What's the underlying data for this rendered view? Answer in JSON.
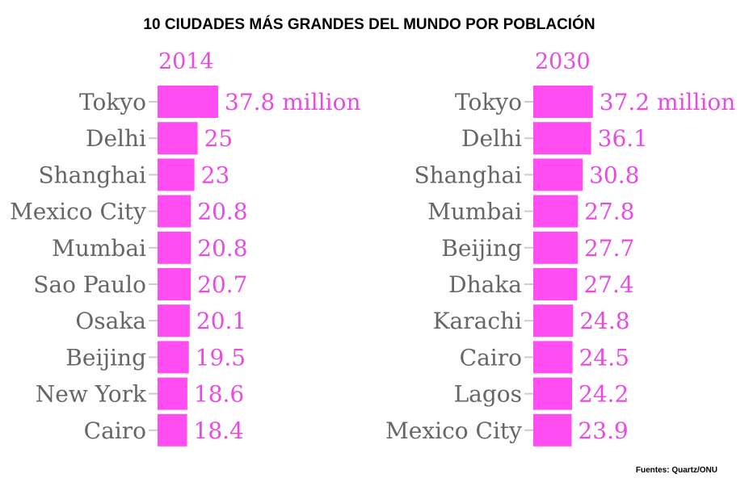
{
  "title": "10 CIUDADES MÁS GRANDES DEL MUNDO POR POBLACIÓN",
  "source": "Fuentes: Quartz/ONU",
  "colors": {
    "bar": "#ff4df2",
    "label": "#666666",
    "value": "#e84be0",
    "tick": "#cccccc"
  },
  "chart_data": [
    {
      "type": "bar",
      "orientation": "horizontal",
      "title": "2014",
      "categories": [
        "Tokyo",
        "Delhi",
        "Shanghai",
        "Mexico City",
        "Mumbai",
        "Sao Paulo",
        "Osaka",
        "Beijing",
        "New York",
        "Cairo"
      ],
      "values": [
        37.8,
        25,
        23,
        20.8,
        20.8,
        20.7,
        20.1,
        19.5,
        18.6,
        18.4
      ],
      "value_labels": [
        "37.8 million",
        "25",
        "23",
        "20.8",
        "20.8",
        "20.7",
        "20.1",
        "19.5",
        "18.6",
        "18.4"
      ],
      "unit": "million"
    },
    {
      "type": "bar",
      "orientation": "horizontal",
      "title": "2030",
      "categories": [
        "Tokyo",
        "Delhi",
        "Shanghai",
        "Mumbai",
        "Beijing",
        "Dhaka",
        "Karachi",
        "Cairo",
        "Lagos",
        "Mexico City"
      ],
      "values": [
        37.2,
        36.1,
        30.8,
        27.8,
        27.7,
        27.4,
        24.8,
        24.5,
        24.2,
        23.9
      ],
      "value_labels": [
        "37.2 million",
        "36.1",
        "30.8",
        "27.8",
        "27.7",
        "27.4",
        "24.8",
        "24.5",
        "24.2",
        "23.9"
      ],
      "unit": "million"
    }
  ]
}
